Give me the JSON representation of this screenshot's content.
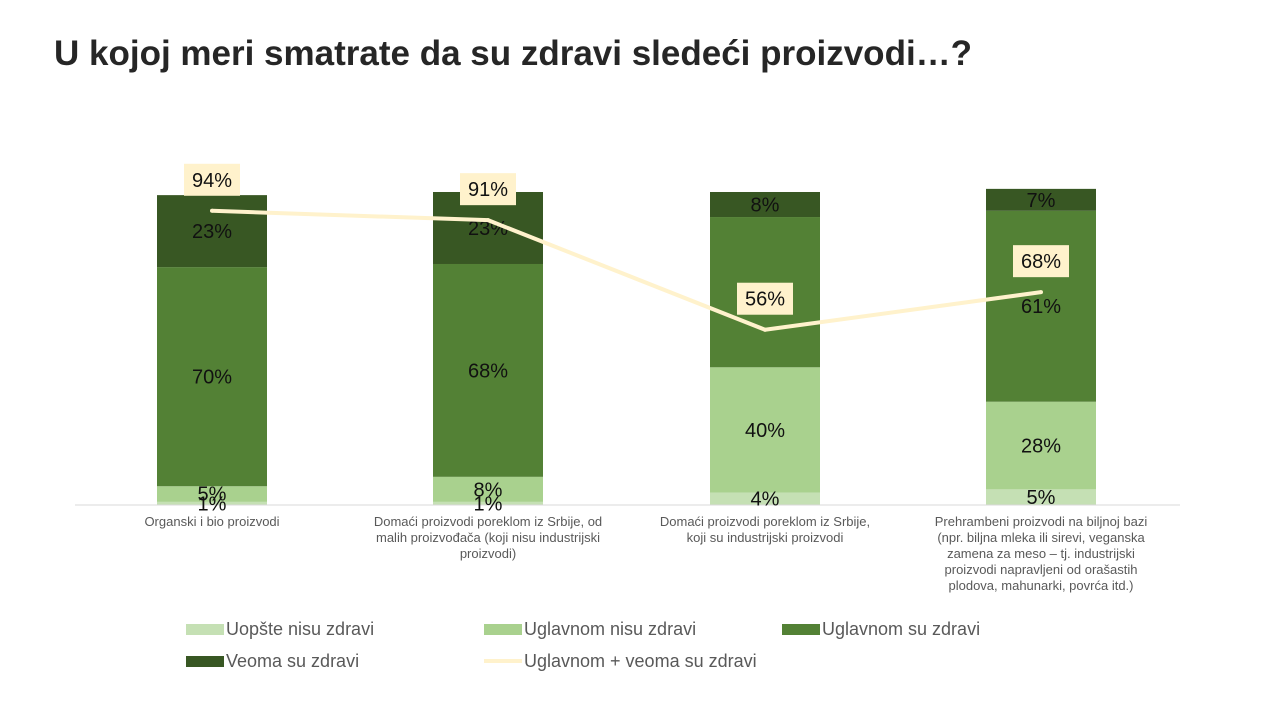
{
  "chart_data": {
    "type": "bar",
    "stacked": true,
    "title": "U kojoj meri smatrate da su zdravi sledeći proizvodi…?",
    "categories": [
      [
        "Organski i bio proizvodi"
      ],
      [
        "Domaći proizvodi poreklom iz Srbije, od",
        "malih proizvođača (koji nisu industrijski",
        "proizvodi)"
      ],
      [
        "Domaći proizvodi poreklom iz Srbije,",
        "koji su industrijski proizvodi"
      ],
      [
        "Prehrambeni proizvodi na biljnoj bazi",
        "(npr. biljna mleka ili sirevi, veganska",
        "zamena za meso – tj. industrijski",
        "proizvodi napravljeni od orašastih",
        "plodova, mahunarki, povrća itd.)"
      ]
    ],
    "series": [
      {
        "name": "Uopšte nisu zdravi",
        "color": "#c5e0b4",
        "values": [
          1,
          1,
          4,
          5
        ]
      },
      {
        "name": "Uglavnom nisu zdravi",
        "color": "#a9d18e",
        "values": [
          5,
          8,
          40,
          28
        ]
      },
      {
        "name": "Uglavnom su zdravi",
        "color": "#538135",
        "values": [
          70,
          68,
          48,
          61
        ]
      },
      {
        "name": "Veoma su zdravi",
        "color": "#385723",
        "values": [
          23,
          23,
          8,
          7
        ]
      }
    ],
    "line_series": {
      "name": "Uglavnom + veoma su zdravi",
      "color": "#fff2cc",
      "values": [
        94,
        91,
        56,
        68
      ]
    },
    "value_suffix": "%",
    "ylim": [
      0,
      100
    ],
    "grid": false,
    "legend_position": "bottom"
  }
}
